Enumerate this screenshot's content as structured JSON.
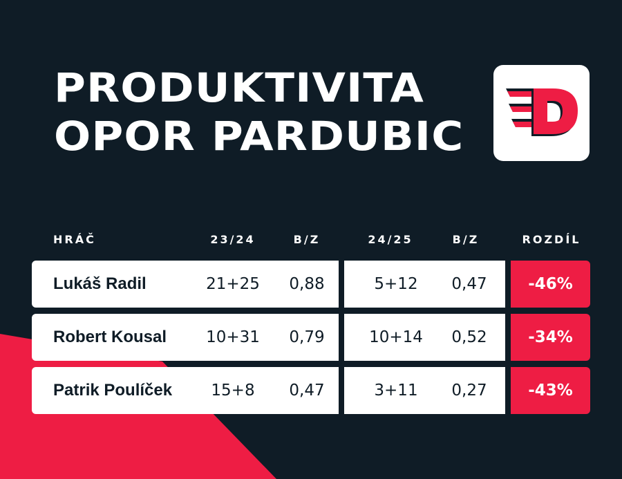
{
  "title": {
    "line1": "PRODUKTIVITA",
    "line2": "OPOR PARDUBIC"
  },
  "logo": {
    "icon": "dynamo-pardubice-logo",
    "color": "#ee1d44"
  },
  "colors": {
    "background": "#0f1c26",
    "accent": "#ee1d44",
    "row": "#ffffff"
  },
  "table": {
    "headers": {
      "player": "HRÁČ",
      "season1": "23/24",
      "ppg1": "B/Z",
      "season2": "24/25",
      "ppg2": "B/Z",
      "diff": "ROZDÍL"
    },
    "rows": [
      {
        "player": "Lukáš Radil",
        "s1": "21+25",
        "p1": "0,88",
        "s2": "5+12",
        "p2": "0,47",
        "diff": "-46%"
      },
      {
        "player": "Robert Kousal",
        "s1": "10+31",
        "p1": "0,79",
        "s2": "10+14",
        "p2": "0,52",
        "diff": "-34%"
      },
      {
        "player": "Patrik Poulíček",
        "s1": "15+8",
        "p1": "0,47",
        "s2": "3+11",
        "p2": "0,27",
        "diff": "-43%"
      }
    ]
  }
}
